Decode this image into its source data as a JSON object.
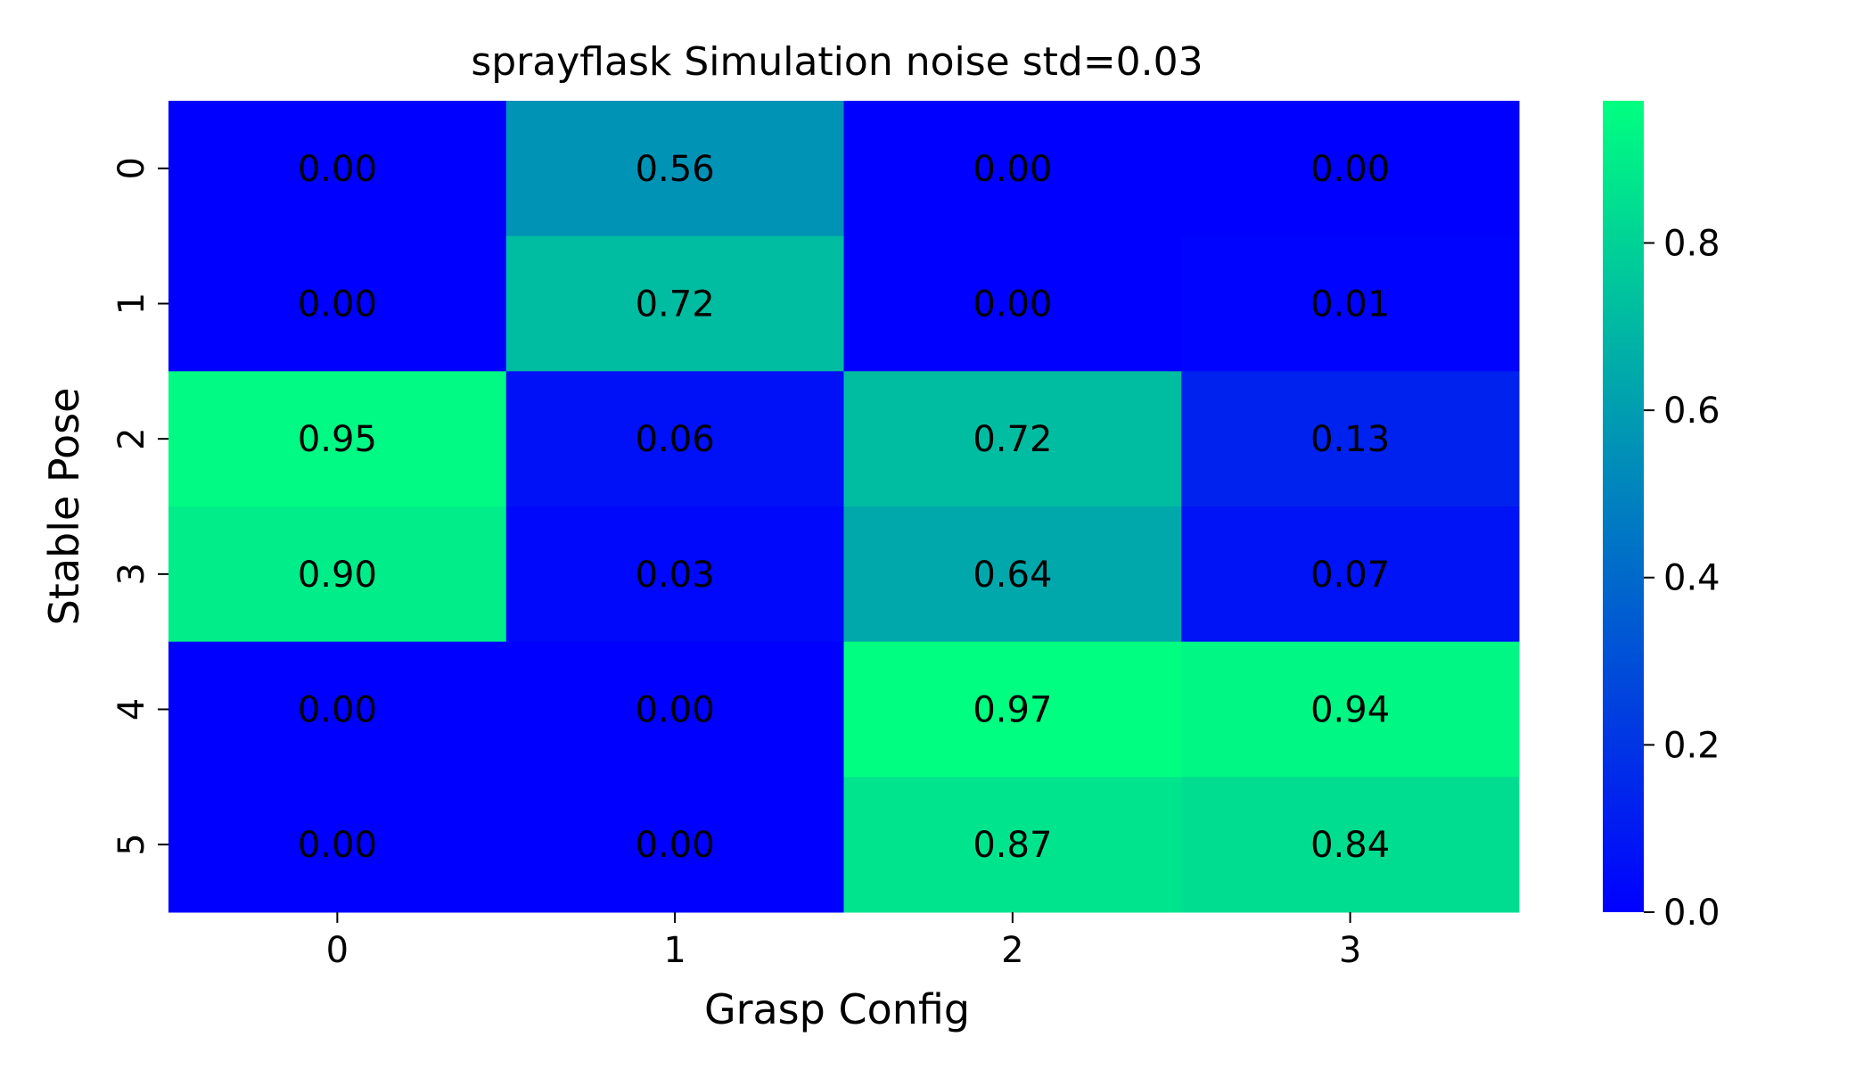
{
  "chart_data": {
    "type": "heatmap",
    "title": "sprayflask Simulation noise std=0.03",
    "xlabel": "Grasp Config",
    "ylabel": "Stable Pose",
    "x_categories": [
      "0",
      "1",
      "2",
      "3"
    ],
    "y_categories": [
      "0",
      "1",
      "2",
      "3",
      "4",
      "5"
    ],
    "values": [
      [
        0.0,
        0.56,
        0.0,
        0.0
      ],
      [
        0.0,
        0.72,
        0.0,
        0.01
      ],
      [
        0.95,
        0.06,
        0.72,
        0.13
      ],
      [
        0.9,
        0.03,
        0.64,
        0.07
      ],
      [
        0.0,
        0.0,
        0.97,
        0.94
      ],
      [
        0.0,
        0.0,
        0.87,
        0.84
      ]
    ],
    "colormap": "winter",
    "color_low": "#0000ff",
    "color_high": "#00ff80",
    "vmin": 0.0,
    "vmax": 0.97,
    "colorbar_ticks": [
      "0.0",
      "0.2",
      "0.4",
      "0.6",
      "0.8"
    ],
    "annotations": true
  }
}
